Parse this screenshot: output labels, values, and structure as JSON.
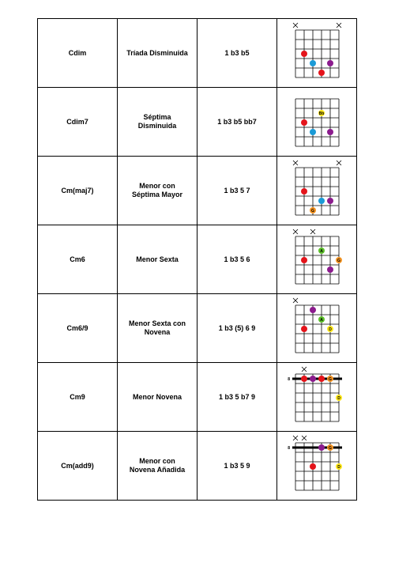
{
  "table": {
    "rows": [
      {
        "chord": "Cdim",
        "name": "Tríada Disminuida",
        "formula": "1 b3 b5"
      },
      {
        "chord": "Cdim7",
        "name": "Séptima Disminuida",
        "formula": "1 b3 b5 bb7",
        "labels": [
          "Bb"
        ]
      },
      {
        "chord": "Cm(maj7)",
        "name": "Menor con Séptima Mayor",
        "formula": "1 b3 5 7",
        "labels": [
          "G"
        ]
      },
      {
        "chord": "Cm6",
        "name": "Menor Sexta",
        "formula": "1 b3 5 6",
        "labels": [
          "A",
          "G"
        ]
      },
      {
        "chord": "Cm6/9",
        "name": "Menor Sexta con Novena",
        "formula": "1 b3 (5) 6 9",
        "labels": [
          "A",
          "D"
        ]
      },
      {
        "chord": "Cm9",
        "name": "Menor Novena",
        "formula": "1 b3 5 b7 9",
        "fret": "8",
        "labels": [
          "G",
          "D"
        ]
      },
      {
        "chord": "Cm(add9)",
        "name": "Menor con Novena Añadida",
        "formula": "1 b3 5 9",
        "fret": "8",
        "labels": [
          "G",
          "D"
        ]
      }
    ]
  }
}
